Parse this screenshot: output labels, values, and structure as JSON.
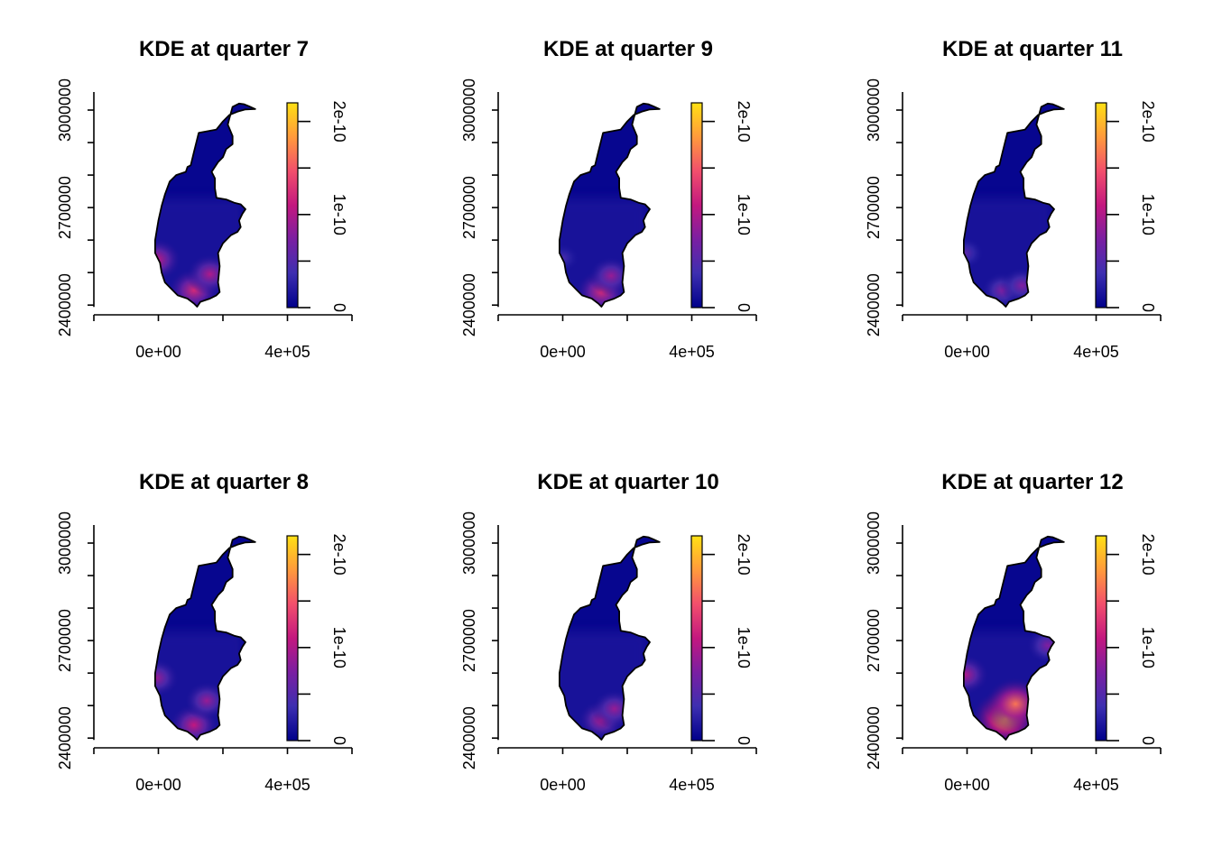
{
  "chart_data": {
    "type": "heatmap",
    "layout": "2 rows x 3 columns, filled column-wise",
    "colormap": [
      "#00008b",
      "#3d2fb0",
      "#7a1fa2",
      "#c3187f",
      "#f24f6c",
      "#ff9a3c",
      "#ffe014"
    ],
    "panels": [
      {
        "title": "KDE at quarter 7",
        "intensity": 0.6,
        "hotspots": [
          {
            "x": 110000,
            "y": 2445000,
            "level": 0.55
          },
          {
            "x": 160000,
            "y": 2495000,
            "level": 0.45
          },
          {
            "x": -5000,
            "y": 2540000,
            "level": 0.5
          }
        ]
      },
      {
        "title": "KDE at quarter 8",
        "intensity": 0.55,
        "hotspots": [
          {
            "x": 110000,
            "y": 2440000,
            "level": 0.5
          },
          {
            "x": 150000,
            "y": 2515000,
            "level": 0.4
          },
          {
            "x": -5000,
            "y": 2585000,
            "level": 0.4
          }
        ]
      },
      {
        "title": "KDE at quarter 9",
        "intensity": 0.55,
        "hotspots": [
          {
            "x": 120000,
            "y": 2440000,
            "level": 0.55
          },
          {
            "x": 150000,
            "y": 2490000,
            "level": 0.4
          },
          {
            "x": 0,
            "y": 2545000,
            "level": 0.2
          }
        ]
      },
      {
        "title": "KDE at quarter 10",
        "intensity": 0.5,
        "hotspots": [
          {
            "x": 120000,
            "y": 2455000,
            "level": 0.45
          },
          {
            "x": 160000,
            "y": 2490000,
            "level": 0.4
          }
        ]
      },
      {
        "title": "KDE at quarter 11",
        "intensity": 0.4,
        "hotspots": [
          {
            "x": 110000,
            "y": 2445000,
            "level": 0.35
          },
          {
            "x": 170000,
            "y": 2460000,
            "level": 0.35
          },
          {
            "x": -5000,
            "y": 2560000,
            "level": 0.25
          }
        ]
      },
      {
        "title": "KDE at quarter 12",
        "intensity": 0.95,
        "hotspots": [
          {
            "x": 120000,
            "y": 2460000,
            "level": 0.9
          },
          {
            "x": 150000,
            "y": 2505000,
            "level": 0.75
          },
          {
            "x": -5000,
            "y": 2595000,
            "level": 0.45
          },
          {
            "x": 250000,
            "y": 2685000,
            "level": 0.35
          }
        ]
      }
    ],
    "x_axis": {
      "ticks": [
        0,
        400000
      ],
      "tick_labels": [
        "0e+00",
        "4e+05"
      ],
      "range": [
        -200000,
        600000
      ]
    },
    "y_axis": {
      "ticks": [
        2400000,
        2500000,
        2600000,
        2700000,
        2800000,
        2900000,
        3000000
      ],
      "tick_labels": [
        "2400000",
        "",
        "",
        "2700000",
        "",
        "",
        "3000000"
      ],
      "range": [
        2370000,
        3050000
      ]
    },
    "legend": {
      "ticks": [
        0,
        5e-11,
        1e-10,
        1.5e-10,
        2e-10
      ],
      "tick_labels": [
        "0",
        "",
        "1e-10",
        "",
        "2e-10"
      ],
      "range": [
        0,
        2.2e-10
      ]
    },
    "region_outline": [
      [
        230000,
        3010000
      ],
      [
        250000,
        3020000
      ],
      [
        265000,
        3018000
      ],
      [
        280000,
        3012000
      ],
      [
        300000,
        3003000
      ],
      [
        270000,
        3002000
      ],
      [
        245000,
        2995000
      ],
      [
        220000,
        2985000
      ],
      [
        200000,
        2965000
      ],
      [
        180000,
        2940000
      ],
      [
        125000,
        2930000
      ],
      [
        110000,
        2870000
      ],
      [
        100000,
        2830000
      ],
      [
        90000,
        2825000
      ],
      [
        85000,
        2810000
      ],
      [
        55000,
        2800000
      ],
      [
        35000,
        2780000
      ],
      [
        20000,
        2740000
      ],
      [
        10000,
        2705000
      ],
      [
        0,
        2660000
      ],
      [
        -10000,
        2600000
      ],
      [
        -10000,
        2560000
      ],
      [
        5000,
        2530000
      ],
      [
        10000,
        2500000
      ],
      [
        20000,
        2470000
      ],
      [
        40000,
        2450000
      ],
      [
        60000,
        2430000
      ],
      [
        90000,
        2420000
      ],
      [
        110000,
        2405000
      ],
      [
        120000,
        2395000
      ],
      [
        130000,
        2410000
      ],
      [
        160000,
        2420000
      ],
      [
        180000,
        2430000
      ],
      [
        190000,
        2440000
      ],
      [
        185000,
        2470000
      ],
      [
        190000,
        2520000
      ],
      [
        185000,
        2560000
      ],
      [
        200000,
        2590000
      ],
      [
        225000,
        2615000
      ],
      [
        245000,
        2625000
      ],
      [
        255000,
        2640000
      ],
      [
        250000,
        2660000
      ],
      [
        260000,
        2680000
      ],
      [
        270000,
        2695000
      ],
      [
        255000,
        2710000
      ],
      [
        235000,
        2715000
      ],
      [
        210000,
        2725000
      ],
      [
        180000,
        2730000
      ],
      [
        175000,
        2760000
      ],
      [
        175000,
        2790000
      ],
      [
        165000,
        2810000
      ],
      [
        185000,
        2840000
      ],
      [
        200000,
        2855000
      ],
      [
        210000,
        2880000
      ],
      [
        230000,
        2895000
      ],
      [
        230000,
        2920000
      ],
      [
        215000,
        2955000
      ],
      [
        220000,
        2975000
      ]
    ]
  }
}
